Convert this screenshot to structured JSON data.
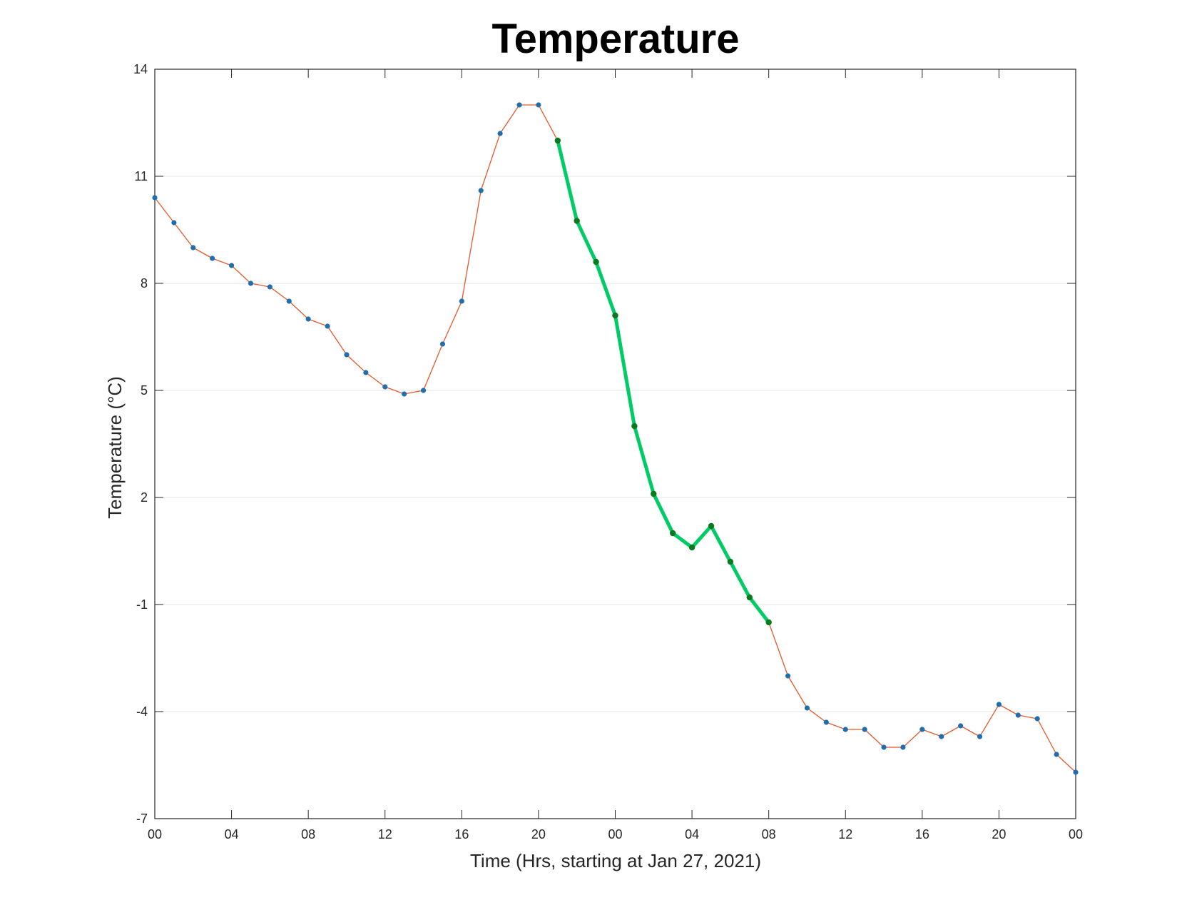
{
  "chart_data": {
    "type": "line",
    "title": "Temperature",
    "xlabel": "Time (Hrs, starting at Jan 27, 2021)",
    "ylabel": "Temperature (°C)",
    "x_unit": "hours",
    "xlim": [
      0,
      48
    ],
    "ylim": [
      -7,
      14
    ],
    "xticks": [
      0,
      4,
      8,
      12,
      16,
      20,
      24,
      28,
      32,
      36,
      40,
      44,
      48
    ],
    "xtick_labels": [
      "00",
      "04",
      "08",
      "12",
      "16",
      "20",
      "00",
      "04",
      "08",
      "12",
      "16",
      "20",
      "00"
    ],
    "yticks": [
      -7,
      -4,
      -1,
      2,
      5,
      8,
      11,
      14
    ],
    "ytick_labels": [
      "-7",
      "-4",
      "-1",
      "2",
      "5",
      "8",
      "11",
      "14"
    ],
    "grid": "horizontal",
    "x": [
      0,
      1,
      2,
      3,
      4,
      5,
      6,
      7,
      8,
      9,
      10,
      11,
      12,
      13,
      14,
      15,
      16,
      17,
      18,
      19,
      20,
      21,
      22,
      23,
      24,
      25,
      26,
      27,
      28,
      29,
      30,
      31,
      32,
      33,
      34,
      35,
      36,
      37,
      38,
      39,
      40,
      41,
      42,
      43,
      44,
      45,
      46,
      47,
      48
    ],
    "series": [
      {
        "role": "full record",
        "values": [
          10.4,
          9.7,
          9.0,
          8.7,
          8.5,
          8.0,
          7.9,
          7.5,
          7.0,
          6.8,
          6.0,
          5.5,
          5.1,
          4.9,
          5.0,
          6.3,
          7.5,
          10.6,
          12.2,
          13.0,
          13.0,
          12.0,
          9.75,
          8.6,
          7.1,
          4.0,
          2.1,
          1.0,
          0.6,
          1.2,
          0.2,
          -0.8,
          -1.5,
          -3.0,
          -3.9,
          -4.3,
          -4.5,
          -4.5,
          -5.0,
          -5.0,
          -4.5,
          -4.7,
          -4.4,
          -4.7,
          -3.8,
          -4.1,
          -4.2,
          -5.2,
          -5.7
        ],
        "line_color": "#E8572A",
        "marker_color": "#1F6FAE"
      },
      {
        "role": "highlighted segment",
        "x_range": [
          21,
          32
        ],
        "line_color": "#00CC66",
        "marker_color": "#0A7A1E"
      }
    ],
    "colors": {
      "grid": "#e3e3e3",
      "axes": "#262626"
    }
  }
}
